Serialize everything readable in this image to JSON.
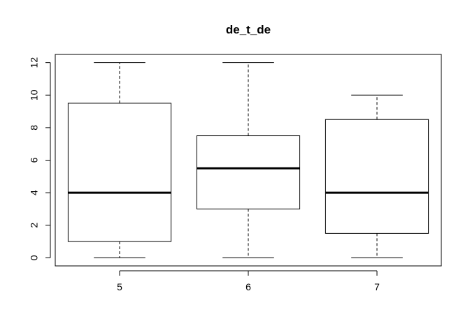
{
  "chart_data": {
    "type": "box",
    "title": "de_t_de",
    "xlabel": "",
    "ylabel": "",
    "categories": [
      "5",
      "6",
      "7"
    ],
    "boxes": [
      {
        "category": "5",
        "min": 0,
        "q1": 1,
        "median": 4,
        "q3": 9.5,
        "max": 12
      },
      {
        "category": "6",
        "min": 0,
        "q1": 3,
        "median": 5.5,
        "q3": 7.5,
        "max": 12
      },
      {
        "category": "7",
        "min": 0,
        "q1": 1.5,
        "median": 4,
        "q3": 8.5,
        "max": 10
      }
    ],
    "ylim": [
      -0.5,
      12.5
    ],
    "yticks": [
      0,
      2,
      4,
      6,
      8,
      10,
      12
    ],
    "ytick_labels": [
      "0",
      "2",
      "4",
      "6",
      "8",
      "10",
      "12"
    ],
    "grid": false,
    "colors": {
      "box_fill": "#ffffff",
      "stroke": "#000000"
    }
  }
}
